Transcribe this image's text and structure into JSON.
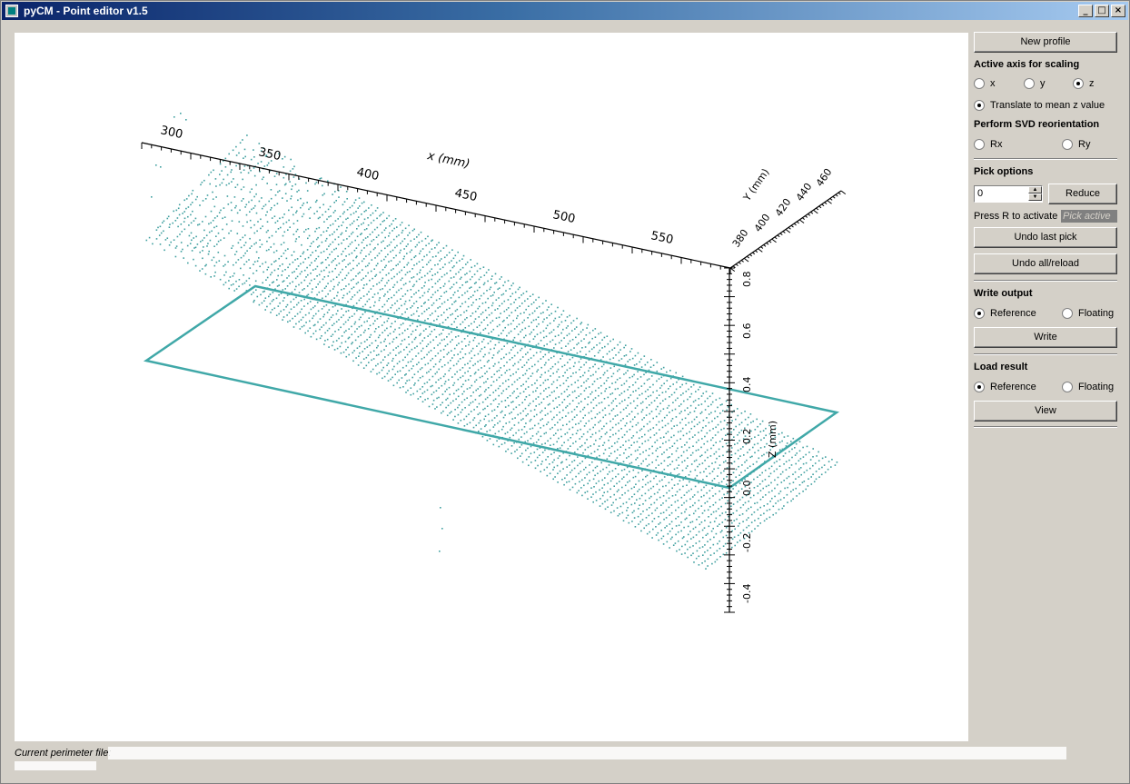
{
  "window": {
    "title": "pyCM - Point editor v1.5",
    "minimize": "_",
    "maximize": "□",
    "close": "×"
  },
  "plot": {
    "x_axis_label": "x (mm)",
    "x_ticks": [
      "300",
      "350",
      "400",
      "450",
      "500",
      "550"
    ],
    "y_axis_label": "Y (mm)",
    "y_ticks": [
      "380",
      "400",
      "420",
      "440",
      "460"
    ],
    "z_axis_label": "Z (mm)",
    "z_ticks": [
      "0.8",
      "0.6",
      "0.4",
      "0.2",
      "0.0",
      "-0.2",
      "-0.4"
    ],
    "colors": {
      "points": "#40a0a0",
      "outline": "#40a8a8",
      "axes": "#000000"
    }
  },
  "panel": {
    "new_profile": "New profile",
    "active_axis_title": "Active axis for scaling",
    "axis_x": "x",
    "axis_y": "y",
    "axis_z": "z",
    "translate_label": "Translate to mean z value",
    "svd_title": "Perform SVD reorientation",
    "svd_rx": "Rx",
    "svd_ry": "Ry",
    "pick_title": "Pick options",
    "spin_value": "0",
    "reduce": "Reduce",
    "press_hint": "Press R to activate",
    "pick_state": "Pick active",
    "undo_last": "Undo last pick",
    "undo_all": "Undo all/reload",
    "write_title": "Write output",
    "write_reference": "Reference",
    "write_floating": "Floating",
    "write": "Write",
    "load_title": "Load result",
    "load_reference": "Reference",
    "load_floating": "Floating",
    "view": "View"
  },
  "status": {
    "label": "Current perimeter file:"
  }
}
